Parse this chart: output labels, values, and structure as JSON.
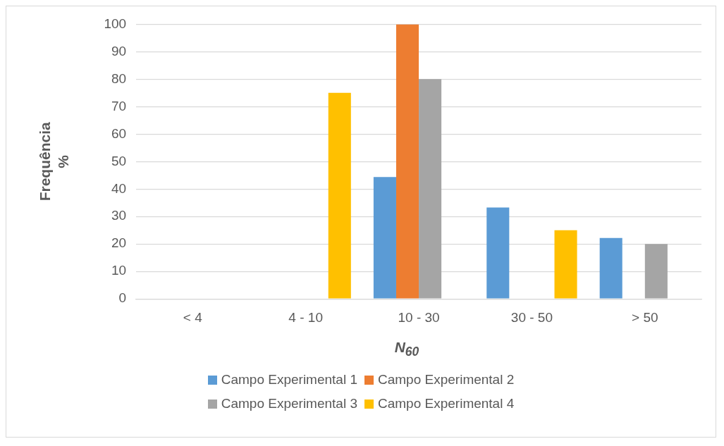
{
  "chart_data": {
    "type": "bar",
    "xlabel": "N$_{60}$",
    "ylabel": "Frequência\n%",
    "categories": [
      "< 4",
      "4 - 10",
      "10 - 30",
      "30 - 50",
      "> 50"
    ],
    "series": [
      {
        "name": "Campo Experimental 1",
        "color": "#5b9bd5",
        "values": [
          0,
          0,
          44.4,
          33.3,
          22.2
        ]
      },
      {
        "name": "Campo Experimental 2",
        "color": "#ed7d31",
        "values": [
          0,
          0,
          100,
          0,
          0
        ]
      },
      {
        "name": "Campo Experimental 3",
        "color": "#a5a5a5",
        "values": [
          0,
          0,
          80,
          0,
          20
        ]
      },
      {
        "name": "Campo Experimental 4",
        "color": "#ffc000",
        "values": [
          0,
          75,
          0,
          25,
          0
        ]
      }
    ],
    "ylim": [
      0,
      100
    ],
    "yticks": [
      0,
      10,
      20,
      30,
      40,
      50,
      60,
      70,
      80,
      90,
      100
    ],
    "grid": "y",
    "legend": "bottom"
  }
}
